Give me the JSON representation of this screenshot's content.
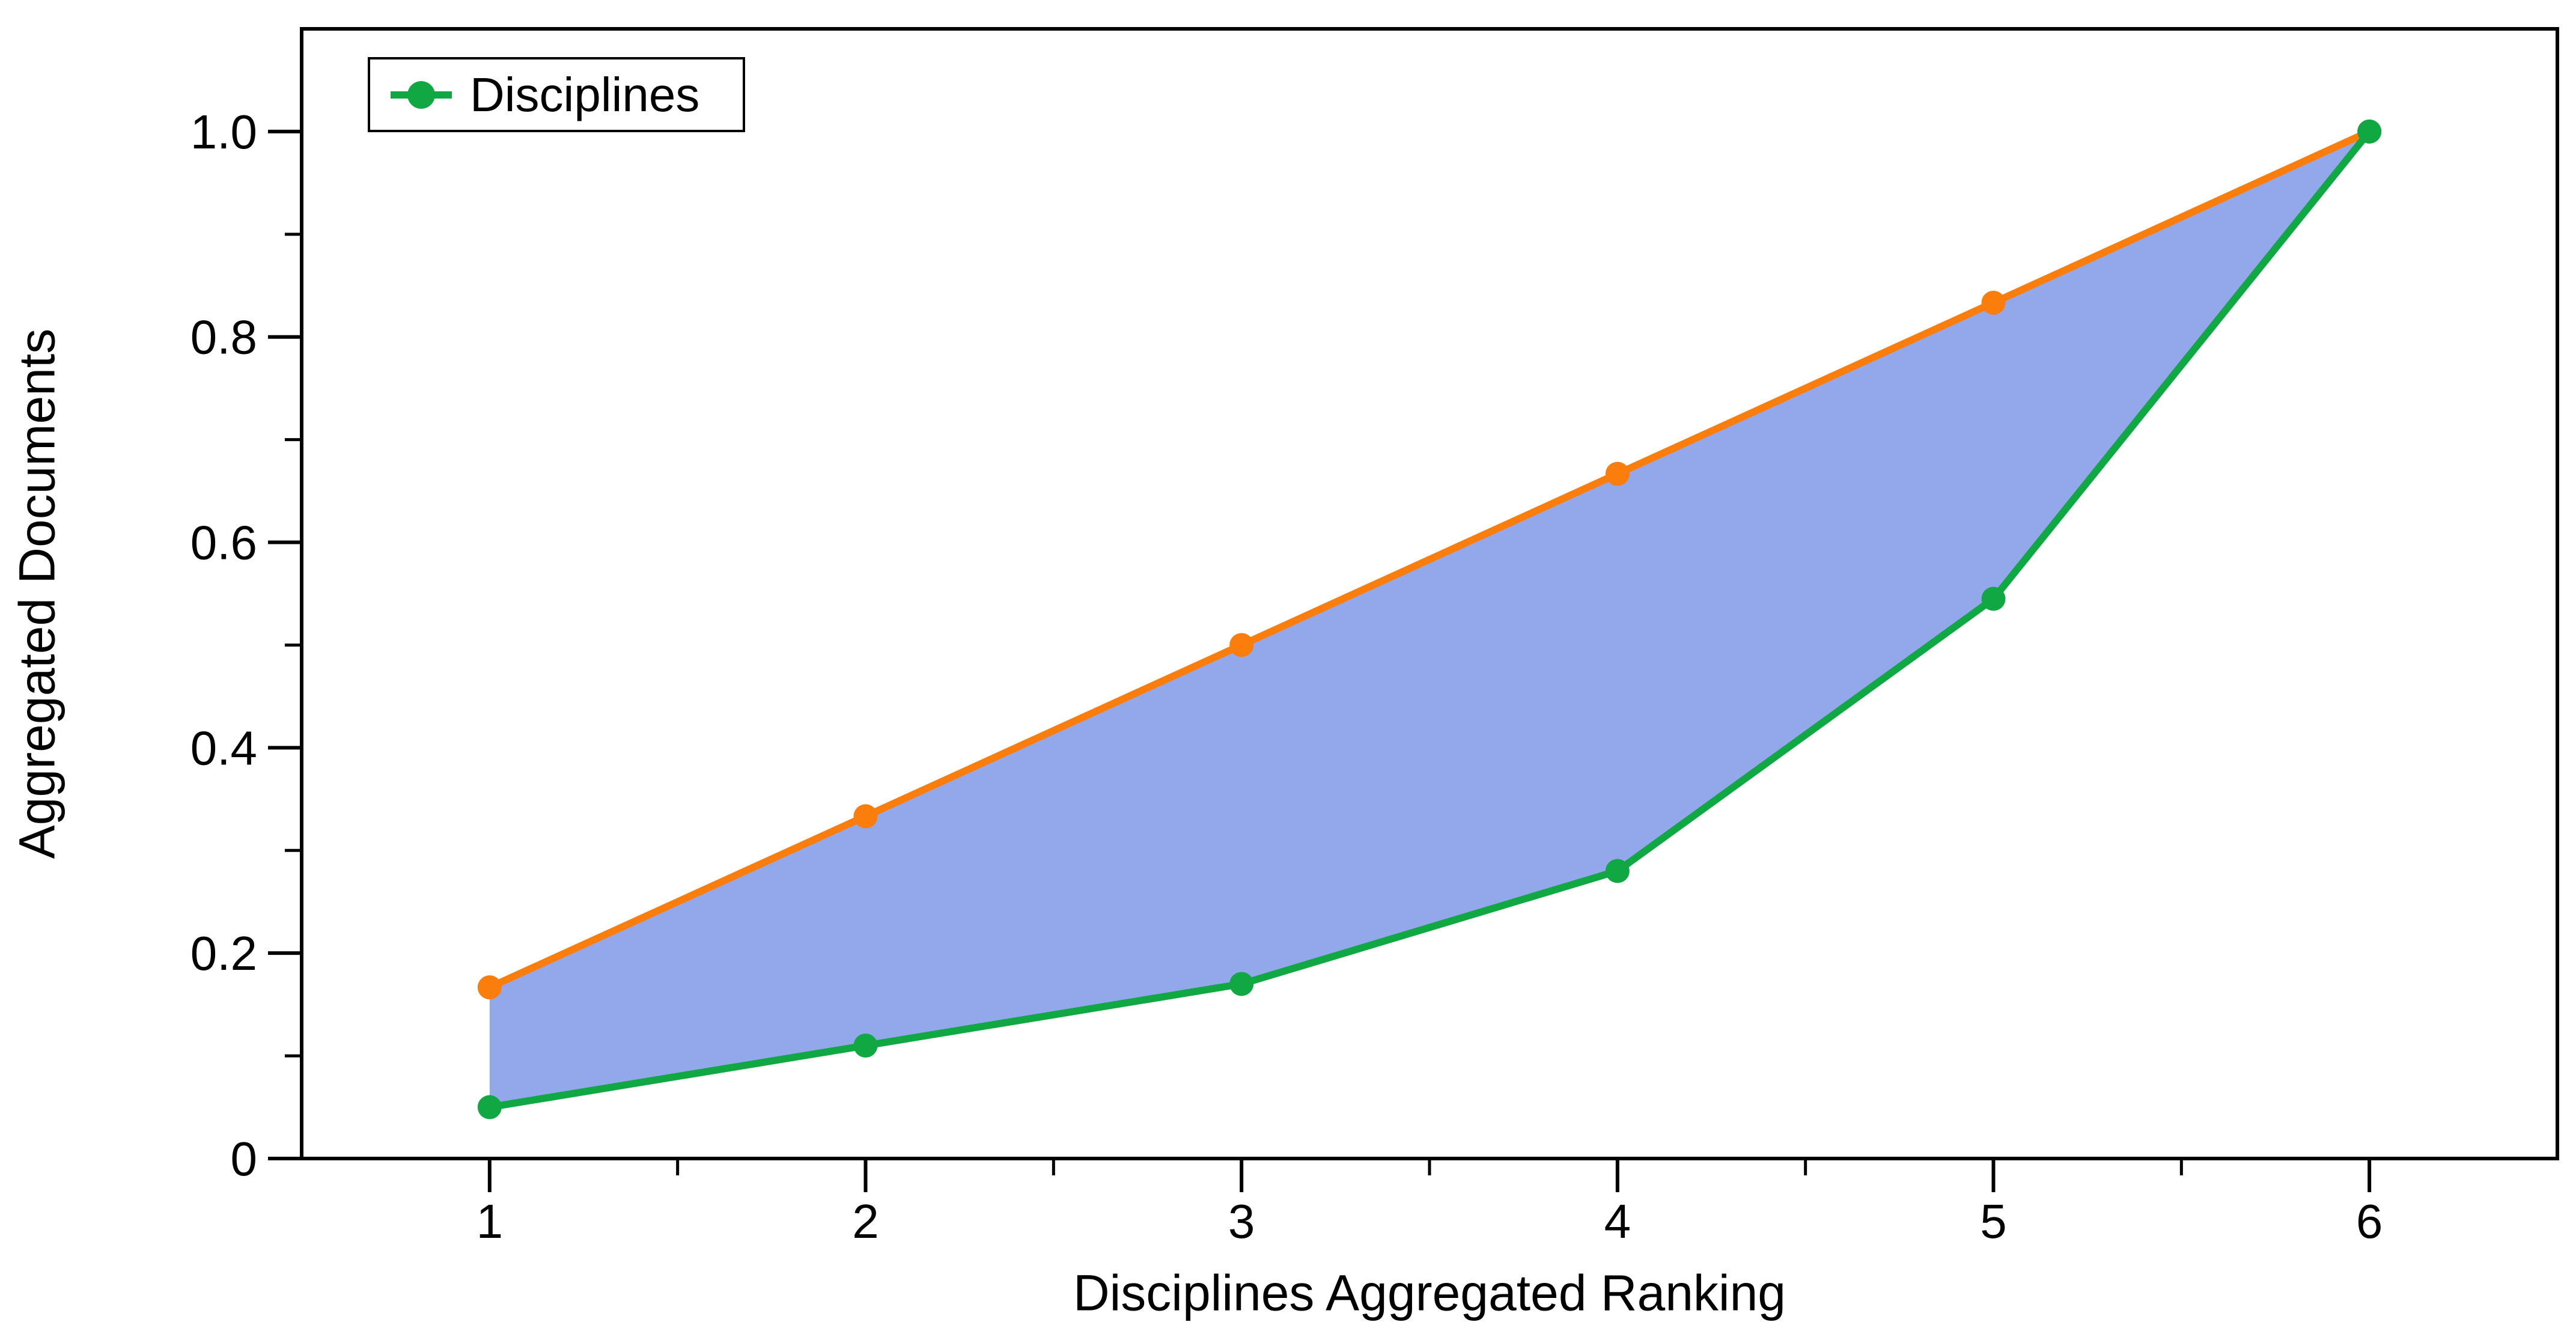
{
  "figure": {
    "background": "#ffffff",
    "xlabel": "Disciplines Aggregated Ranking",
    "ylabel": "Aggregated Documents",
    "legend": {
      "position": "upper left",
      "entries": [
        {
          "label": "Disciplines",
          "color": "#10A843",
          "marker": "circle-on-line"
        }
      ]
    }
  },
  "colors": {
    "axis": "#000000",
    "upper_line": "#FB7E0D",
    "disciplines_line": "#10A843",
    "band_fill": "#93A8EA"
  },
  "chart_data": {
    "type": "line",
    "title": "",
    "xlabel": "Disciplines Aggregated Ranking",
    "ylabel": "Aggregated Documents",
    "x": [
      1,
      2,
      3,
      4,
      5,
      6
    ],
    "series": [
      {
        "id": "upper",
        "name": "unlabeled-upper-series",
        "in_legend": false,
        "color": "#FB7E0D",
        "values": [
          0.1667,
          0.3333,
          0.5,
          0.6667,
          0.8333,
          1.0
        ]
      },
      {
        "id": "disciplines",
        "name": "Disciplines",
        "in_legend": true,
        "color": "#10A843",
        "values": [
          0.05,
          0.11,
          0.17,
          0.28,
          0.545,
          1.0
        ]
      }
    ],
    "fill_between": {
      "upper": "upper",
      "lower": "disciplines",
      "color": "#93A8EA"
    },
    "xlim": [
      0.5,
      6.5
    ],
    "ylim": [
      0,
      1.1
    ],
    "xticks": {
      "values": [
        1,
        2,
        3,
        4,
        5,
        6
      ],
      "labels": [
        "1",
        "2",
        "3",
        "4",
        "5",
        "6"
      ]
    },
    "yticks": {
      "values": [
        0,
        0.2,
        0.4,
        0.6,
        0.8,
        1.0
      ],
      "labels": [
        "0",
        "0.2",
        "0.4",
        "0.6",
        "0.8",
        "1.0"
      ]
    },
    "xminorticks": [
      1.5,
      2.5,
      3.5,
      4.5,
      5.5
    ],
    "yminorticks": [
      0.1,
      0.3,
      0.5,
      0.7,
      0.9
    ],
    "grid": false,
    "legend_position": "upper left"
  }
}
